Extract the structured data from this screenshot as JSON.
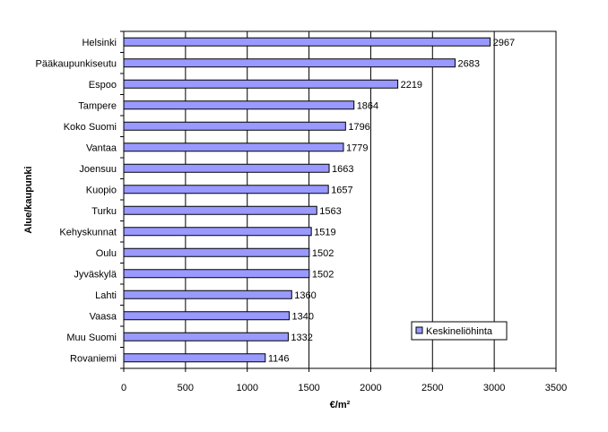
{
  "chart_data": {
    "type": "bar",
    "orientation": "horizontal",
    "categories": [
      "Helsinki",
      "Pääkaupunkiseutu",
      "Espoo",
      "Tampere",
      "Koko Suomi",
      "Vantaa",
      "Joensuu",
      "Kuopio",
      "Turku",
      "Kehyskunnat",
      "Oulu",
      "Jyväskylä",
      "Lahti",
      "Vaasa",
      "Muu Suomi",
      "Rovaniemi"
    ],
    "series": [
      {
        "name": "Keskineliöhinta",
        "values": [
          2967,
          2683,
          2219,
          1864,
          1796,
          1779,
          1663,
          1657,
          1563,
          1519,
          1502,
          1502,
          1360,
          1340,
          1332,
          1146
        ],
        "color": "#9999ff"
      }
    ],
    "xlabel": "€/m²",
    "ylabel": "Alue/kaupunki",
    "xlim": [
      0,
      3500
    ],
    "x_ticks": [
      0,
      500,
      1000,
      1500,
      2000,
      2500,
      3000,
      3500
    ],
    "grid": "vertical",
    "legend": "inside-lower-right",
    "data_labels": true
  }
}
